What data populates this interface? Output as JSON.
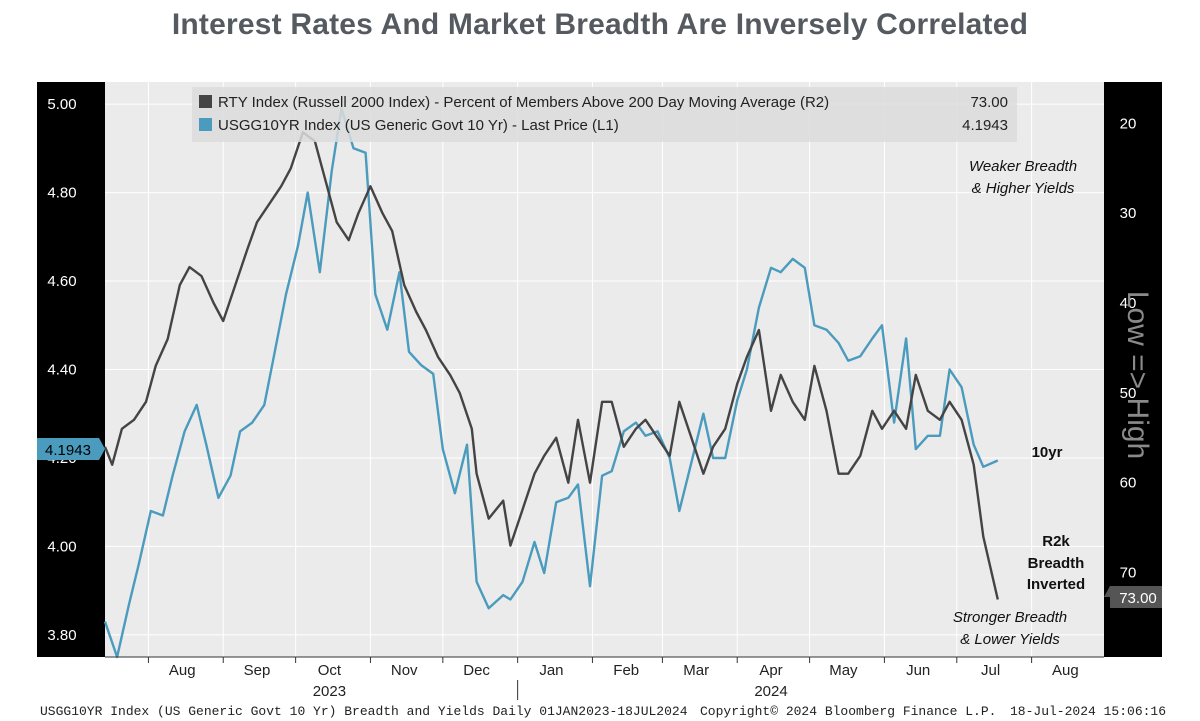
{
  "title": "Interest Rates And Market Breadth Are Inversely Correlated",
  "chart_data": {
    "type": "line",
    "legend": [
      {
        "label": "RTY Index (Russell 2000 Index) - Percent of Members Above 200 Day Moving Average (R2)",
        "value": "73.00",
        "color": "#444444"
      },
      {
        "label": "USGG10YR Index (US Generic Govt 10 Yr) - Last Price (L1)",
        "value": "4.1943",
        "color": "#4a9bbd"
      }
    ],
    "legend_position": "top",
    "x_axis": {
      "range": [
        "2023-07-14",
        "2024-08-31"
      ],
      "months": [
        {
          "label": "Aug",
          "date": "2023-08-15"
        },
        {
          "label": "Sep",
          "date": "2023-09-15"
        },
        {
          "label": "Oct",
          "date": "2023-10-15"
        },
        {
          "label": "Nov",
          "date": "2023-11-15"
        },
        {
          "label": "Dec",
          "date": "2023-12-15"
        },
        {
          "label": "Jan",
          "date": "2024-01-15"
        },
        {
          "label": "Feb",
          "date": "2024-02-15"
        },
        {
          "label": "Mar",
          "date": "2024-03-15"
        },
        {
          "label": "Apr",
          "date": "2024-04-15"
        },
        {
          "label": "May",
          "date": "2024-05-15"
        },
        {
          "label": "Jun",
          "date": "2024-06-15"
        },
        {
          "label": "Jul",
          "date": "2024-07-15"
        },
        {
          "label": "Aug",
          "date": "2024-08-15"
        }
      ],
      "years": [
        {
          "label": "2023",
          "date": "2023-10-15"
        },
        {
          "label": "2024",
          "date": "2024-04-15"
        }
      ],
      "year_divider": "2024-01-01"
    },
    "y_left": {
      "label": "",
      "range": [
        3.75,
        5.05
      ],
      "ticks": [
        "5.00",
        "4.80",
        "4.60",
        "4.40",
        "4.20",
        "4.00",
        "3.80"
      ],
      "tick_values": [
        5.0,
        4.8,
        4.6,
        4.4,
        4.2,
        4.0,
        3.8
      ],
      "last_value": "4.1943"
    },
    "y_right": {
      "label": "Low => High",
      "inverted": true,
      "range": [
        15.4,
        79.4
      ],
      "ticks": [
        "20",
        "30",
        "40",
        "50",
        "60",
        "70"
      ],
      "tick_values": [
        20,
        30,
        40,
        50,
        60,
        70
      ],
      "last_value": "73.00"
    },
    "grid": true,
    "series": [
      {
        "name": "USGG10YR",
        "axis": "left",
        "color": "#4a9bbd",
        "points": [
          [
            "2023-07-14",
            3.83
          ],
          [
            "2023-07-19",
            3.75
          ],
          [
            "2023-07-24",
            3.87
          ],
          [
            "2023-07-28",
            3.96
          ],
          [
            "2023-08-02",
            4.08
          ],
          [
            "2023-08-07",
            4.07
          ],
          [
            "2023-08-11",
            4.16
          ],
          [
            "2023-08-16",
            4.26
          ],
          [
            "2023-08-21",
            4.32
          ],
          [
            "2023-08-25",
            4.23
          ],
          [
            "2023-08-30",
            4.11
          ],
          [
            "2023-09-04",
            4.16
          ],
          [
            "2023-09-08",
            4.26
          ],
          [
            "2023-09-13",
            4.28
          ],
          [
            "2023-09-18",
            4.32
          ],
          [
            "2023-09-22",
            4.43
          ],
          [
            "2023-09-27",
            4.57
          ],
          [
            "2023-10-02",
            4.68
          ],
          [
            "2023-10-06",
            4.8
          ],
          [
            "2023-10-11",
            4.62
          ],
          [
            "2023-10-16",
            4.85
          ],
          [
            "2023-10-20",
            4.99
          ],
          [
            "2023-10-25",
            4.9
          ],
          [
            "2023-10-30",
            4.89
          ],
          [
            "2023-11-03",
            4.57
          ],
          [
            "2023-11-08",
            4.49
          ],
          [
            "2023-11-13",
            4.62
          ],
          [
            "2023-11-17",
            4.44
          ],
          [
            "2023-11-22",
            4.41
          ],
          [
            "2023-11-27",
            4.39
          ],
          [
            "2023-12-01",
            4.22
          ],
          [
            "2023-12-06",
            4.12
          ],
          [
            "2023-12-11",
            4.23
          ],
          [
            "2023-12-15",
            3.92
          ],
          [
            "2023-12-20",
            3.86
          ],
          [
            "2023-12-26",
            3.89
          ],
          [
            "2023-12-29",
            3.88
          ],
          [
            "2024-01-03",
            3.92
          ],
          [
            "2024-01-08",
            4.01
          ],
          [
            "2024-01-12",
            3.94
          ],
          [
            "2024-01-17",
            4.1
          ],
          [
            "2024-01-22",
            4.11
          ],
          [
            "2024-01-26",
            4.14
          ],
          [
            "2024-01-31",
            3.91
          ],
          [
            "2024-02-05",
            4.16
          ],
          [
            "2024-02-09",
            4.17
          ],
          [
            "2024-02-14",
            4.26
          ],
          [
            "2024-02-19",
            4.28
          ],
          [
            "2024-02-23",
            4.25
          ],
          [
            "2024-02-28",
            4.26
          ],
          [
            "2024-03-04",
            4.2
          ],
          [
            "2024-03-08",
            4.08
          ],
          [
            "2024-03-13",
            4.19
          ],
          [
            "2024-03-18",
            4.3
          ],
          [
            "2024-03-22",
            4.2
          ],
          [
            "2024-03-27",
            4.2
          ],
          [
            "2024-04-01",
            4.33
          ],
          [
            "2024-04-05",
            4.4
          ],
          [
            "2024-04-10",
            4.54
          ],
          [
            "2024-04-15",
            4.63
          ],
          [
            "2024-04-19",
            4.62
          ],
          [
            "2024-04-24",
            4.65
          ],
          [
            "2024-04-29",
            4.63
          ],
          [
            "2024-05-03",
            4.5
          ],
          [
            "2024-05-08",
            4.49
          ],
          [
            "2024-05-13",
            4.46
          ],
          [
            "2024-05-17",
            4.42
          ],
          [
            "2024-05-22",
            4.43
          ],
          [
            "2024-05-27",
            4.47
          ],
          [
            "2024-05-31",
            4.5
          ],
          [
            "2024-06-05",
            4.28
          ],
          [
            "2024-06-10",
            4.47
          ],
          [
            "2024-06-14",
            4.22
          ],
          [
            "2024-06-19",
            4.25
          ],
          [
            "2024-06-24",
            4.25
          ],
          [
            "2024-06-28",
            4.4
          ],
          [
            "2024-07-03",
            4.36
          ],
          [
            "2024-07-08",
            4.23
          ],
          [
            "2024-07-12",
            4.18
          ],
          [
            "2024-07-18",
            4.1943
          ]
        ]
      },
      {
        "name": "R2",
        "axis": "right",
        "color": "#444444",
        "points": [
          [
            "2023-07-14",
            56
          ],
          [
            "2023-07-17",
            58
          ],
          [
            "2023-07-21",
            54
          ],
          [
            "2023-07-26",
            53
          ],
          [
            "2023-07-31",
            51
          ],
          [
            "2023-08-04",
            47
          ],
          [
            "2023-08-09",
            44
          ],
          [
            "2023-08-14",
            38
          ],
          [
            "2023-08-18",
            36
          ],
          [
            "2023-08-23",
            37
          ],
          [
            "2023-08-28",
            40
          ],
          [
            "2023-09-01",
            42
          ],
          [
            "2023-09-06",
            38
          ],
          [
            "2023-09-11",
            34
          ],
          [
            "2023-09-15",
            31
          ],
          [
            "2023-09-20",
            29
          ],
          [
            "2023-09-25",
            27
          ],
          [
            "2023-09-29",
            25
          ],
          [
            "2023-10-04",
            21
          ],
          [
            "2023-10-09",
            22
          ],
          [
            "2023-10-13",
            26
          ],
          [
            "2023-10-18",
            31
          ],
          [
            "2023-10-23",
            33
          ],
          [
            "2023-10-27",
            30
          ],
          [
            "2023-11-01",
            27
          ],
          [
            "2023-11-06",
            30
          ],
          [
            "2023-11-10",
            32
          ],
          [
            "2023-11-15",
            38
          ],
          [
            "2023-11-20",
            41
          ],
          [
            "2023-11-24",
            43
          ],
          [
            "2023-11-29",
            46
          ],
          [
            "2023-12-04",
            48
          ],
          [
            "2023-12-08",
            50
          ],
          [
            "2023-12-13",
            54
          ],
          [
            "2023-12-15",
            59
          ],
          [
            "2023-12-20",
            64
          ],
          [
            "2023-12-26",
            62
          ],
          [
            "2023-12-29",
            67
          ],
          [
            "2024-01-03",
            63
          ],
          [
            "2024-01-08",
            59
          ],
          [
            "2024-01-12",
            57
          ],
          [
            "2024-01-17",
            55
          ],
          [
            "2024-01-22",
            60
          ],
          [
            "2024-01-26",
            53
          ],
          [
            "2024-01-31",
            60
          ],
          [
            "2024-02-05",
            51
          ],
          [
            "2024-02-09",
            51
          ],
          [
            "2024-02-14",
            56
          ],
          [
            "2024-02-19",
            54
          ],
          [
            "2024-02-23",
            53
          ],
          [
            "2024-02-28",
            55
          ],
          [
            "2024-03-04",
            57
          ],
          [
            "2024-03-08",
            51
          ],
          [
            "2024-03-13",
            55
          ],
          [
            "2024-03-18",
            59
          ],
          [
            "2024-03-22",
            56
          ],
          [
            "2024-03-27",
            54
          ],
          [
            "2024-04-01",
            49
          ],
          [
            "2024-04-05",
            46
          ],
          [
            "2024-04-10",
            43
          ],
          [
            "2024-04-15",
            52
          ],
          [
            "2024-04-19",
            48
          ],
          [
            "2024-04-24",
            51
          ],
          [
            "2024-04-29",
            53
          ],
          [
            "2024-05-03",
            47
          ],
          [
            "2024-05-08",
            52
          ],
          [
            "2024-05-13",
            59
          ],
          [
            "2024-05-17",
            59
          ],
          [
            "2024-05-22",
            57
          ],
          [
            "2024-05-27",
            52
          ],
          [
            "2024-05-31",
            54
          ],
          [
            "2024-06-05",
            52
          ],
          [
            "2024-06-10",
            54
          ],
          [
            "2024-06-14",
            48
          ],
          [
            "2024-06-19",
            52
          ],
          [
            "2024-06-24",
            53
          ],
          [
            "2024-06-28",
            51
          ],
          [
            "2024-07-03",
            53
          ],
          [
            "2024-07-08",
            58
          ],
          [
            "2024-07-12",
            66
          ],
          [
            "2024-07-18",
            73.0
          ]
        ]
      }
    ],
    "annotations": [
      {
        "lines": [
          "Weaker Breadth",
          "& Higher Yields"
        ],
        "style": "italic"
      },
      {
        "lines": [
          "10yr"
        ],
        "style": "bold"
      },
      {
        "lines": [
          "R2k",
          "Breadth",
          "Inverted"
        ],
        "style": "bold"
      },
      {
        "lines": [
          "Stronger Breadth",
          "& Lower Yields"
        ],
        "style": "italic"
      }
    ]
  },
  "footer": {
    "left": "USGG10YR Index (US Generic Govt 10 Yr) Breadth and Yields  Daily 01JAN2023-18JUL2024",
    "middle": "Copyright© 2024 Bloomberg Finance L.P.",
    "right": "18-Jul-2024 15:06:16"
  },
  "colors": {
    "plot_bg": "#ebebeb",
    "axis_bg": "#000000",
    "yield": "#4a9bbd",
    "breadth": "#444444"
  }
}
